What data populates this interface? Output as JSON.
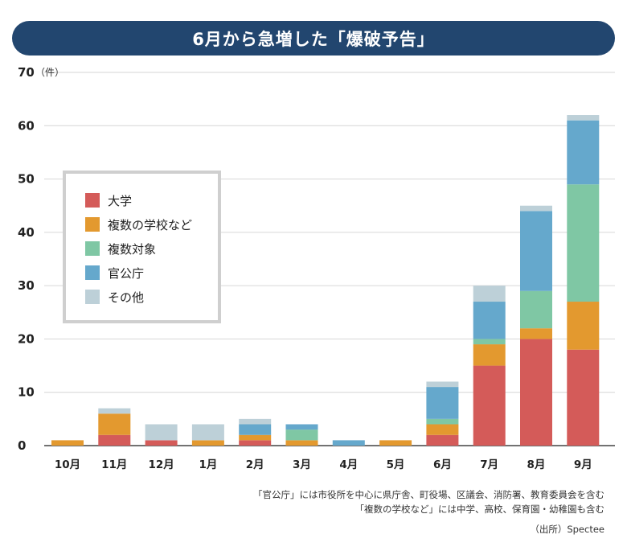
{
  "title": "6月から急増した「爆破予告」",
  "chart_data": {
    "type": "bar",
    "stacked": true,
    "categories": [
      "10月",
      "11月",
      "12月",
      "1月",
      "2月",
      "3月",
      "4月",
      "5月",
      "6月",
      "7月",
      "8月",
      "9月"
    ],
    "series": [
      {
        "name": "大学",
        "color": "#d45b59",
        "values": [
          0,
          2,
          1,
          0,
          1,
          0,
          0,
          0,
          2,
          15,
          20,
          18
        ]
      },
      {
        "name": "複数の学校など",
        "color": "#e3992f",
        "values": [
          1,
          4,
          0,
          1,
          1,
          1,
          0,
          1,
          2,
          4,
          2,
          9
        ]
      },
      {
        "name": "複数対象",
        "color": "#7fc7a4",
        "values": [
          0,
          0,
          0,
          0,
          0,
          2,
          0,
          0,
          1,
          1,
          7,
          22
        ]
      },
      {
        "name": "官公庁",
        "color": "#65a8cc",
        "values": [
          0,
          0,
          0,
          0,
          2,
          1,
          1,
          0,
          6,
          7,
          15,
          12
        ]
      },
      {
        "name": "その他",
        "color": "#bdd0d8",
        "values": [
          0,
          1,
          3,
          3,
          1,
          0,
          0,
          0,
          1,
          3,
          1,
          1
        ]
      }
    ],
    "yticks": [
      0,
      10,
      20,
      30,
      40,
      50,
      60,
      70
    ],
    "ylim": [
      0,
      70
    ],
    "yunit": "（件）",
    "grid": true,
    "legend_position": "upper-left"
  },
  "notes": [
    "「官公庁」には市役所を中心に県庁舎、町役場、区議会、消防署、教育委員会を含む",
    "「複数の学校など」には中学、高校、保育園・幼稚園も含む"
  ],
  "source": "（出所）Spectee"
}
